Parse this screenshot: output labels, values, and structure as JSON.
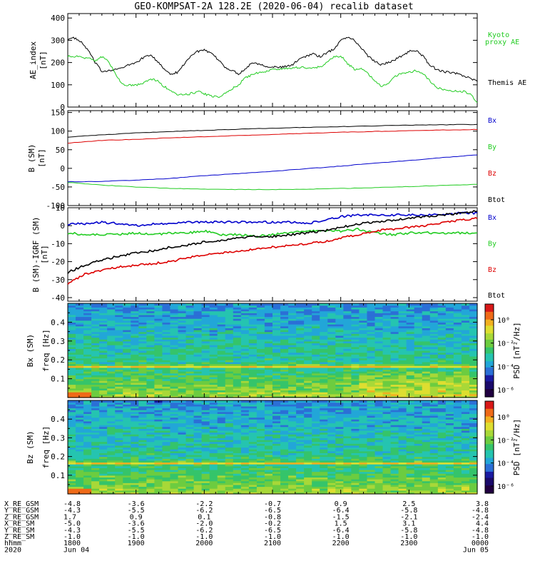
{
  "title": "GEO-KOMPSAT-2A 128.2E (2020-06-04) recalib dataset",
  "colors": {
    "black": "#000000",
    "green": "#22cc22",
    "blue": "#0000cc",
    "red": "#dd0000"
  },
  "chart_data": [
    {
      "type": "line",
      "ylabel": [
        "AE_index",
        "[nT]"
      ],
      "ylim": [
        0,
        420
      ],
      "yticks": [
        "0",
        "100",
        "200",
        "300",
        "400"
      ],
      "legend": [
        {
          "text": "Kyoto",
          "color": "green"
        },
        {
          "text": "proxy AE",
          "color": "green"
        },
        {
          "text": "Themis AE",
          "color": "black"
        }
      ],
      "x_hours": [
        18.0,
        18.1,
        18.2,
        18.3,
        18.4,
        18.5,
        18.6,
        18.7,
        18.8,
        18.9,
        19.0,
        19.1,
        19.2,
        19.3,
        19.4,
        19.5,
        19.6,
        19.7,
        19.8,
        19.9,
        20.0,
        20.1,
        20.2,
        20.3,
        20.4,
        20.5,
        20.6,
        20.7,
        20.8,
        20.9,
        21.0,
        21.1,
        21.2,
        21.3,
        21.4,
        21.5,
        21.6,
        21.7,
        21.8,
        21.9,
        22.0,
        22.1,
        22.2,
        22.3,
        22.4,
        22.5,
        22.6,
        22.7,
        22.8,
        22.9,
        23.0,
        23.1,
        23.2,
        23.3,
        23.4,
        23.5,
        23.6,
        23.7,
        23.8,
        23.9,
        24.0
      ],
      "series": [
        {
          "name": "Themis AE",
          "color": "black",
          "values": [
            305,
            310,
            290,
            255,
            200,
            160,
            165,
            170,
            175,
            190,
            200,
            220,
            235,
            210,
            175,
            150,
            155,
            190,
            230,
            250,
            255,
            240,
            215,
            180,
            165,
            150,
            170,
            200,
            195,
            185,
            180,
            178,
            182,
            190,
            220,
            230,
            240,
            225,
            245,
            260,
            300,
            315,
            300,
            265,
            230,
            205,
            190,
            200,
            215,
            230,
            250,
            255,
            230,
            190,
            170,
            160,
            155,
            150,
            140,
            130,
            115
          ]
        },
        {
          "name": "Kyoto proxy AE",
          "color": "green",
          "values": [
            230,
            228,
            222,
            218,
            210,
            225,
            205,
            150,
            100,
            100,
            100,
            105,
            125,
            120,
            95,
            75,
            55,
            55,
            60,
            70,
            60,
            50,
            45,
            60,
            80,
            100,
            130,
            145,
            155,
            160,
            168,
            170,
            172,
            175,
            178,
            175,
            178,
            180,
            200,
            225,
            230,
            195,
            170,
            175,
            150,
            120,
            90,
            110,
            140,
            150,
            155,
            165,
            150,
            120,
            90,
            80,
            75,
            70,
            70,
            60,
            20
          ]
        }
      ]
    },
    {
      "type": "line",
      "ylabel": [
        "B (SM)",
        "[nT]"
      ],
      "ylim": [
        -100,
        155
      ],
      "yticks": [
        "-100",
        "-50",
        "0",
        "50",
        "100",
        "150"
      ],
      "legend": [
        {
          "text": "Bx",
          "color": "blue"
        },
        {
          "text": "By",
          "color": "green"
        },
        {
          "text": "Bz",
          "color": "red"
        },
        {
          "text": "Btot",
          "color": "black"
        }
      ],
      "x_hours": [
        18.0,
        18.5,
        19.0,
        19.5,
        20.0,
        20.5,
        21.0,
        21.5,
        22.0,
        22.5,
        23.0,
        23.5,
        24.0
      ],
      "series": [
        {
          "name": "Bx",
          "color": "blue",
          "values": [
            -36,
            -35,
            -32,
            -27,
            -20,
            -14,
            -8,
            -1,
            6,
            14,
            21,
            29,
            36
          ]
        },
        {
          "name": "By",
          "color": "green",
          "values": [
            -38,
            -45,
            -50,
            -54,
            -56,
            -57,
            -57,
            -56,
            -54,
            -52,
            -49,
            -46,
            -43
          ]
        },
        {
          "name": "Bz",
          "color": "red",
          "values": [
            68,
            75,
            78,
            82,
            85,
            88,
            91,
            94,
            97,
            99,
            101,
            103,
            104
          ]
        },
        {
          "name": "Btot",
          "color": "black",
          "values": [
            84,
            90,
            95,
            99,
            102,
            105,
            108,
            110,
            112,
            114,
            116,
            117,
            118
          ]
        }
      ]
    },
    {
      "type": "line",
      "ylabel": [
        "B (SM)-IGRF (SM)",
        "[nT]"
      ],
      "ylim": [
        -42,
        10
      ],
      "yticks": [
        "-40",
        "-30",
        "-20",
        "-10",
        "0",
        "10"
      ],
      "legend": [
        {
          "text": "Bx",
          "color": "blue"
        },
        {
          "text": "By",
          "color": "green"
        },
        {
          "text": "Bz",
          "color": "red"
        },
        {
          "text": "Btot",
          "color": "black"
        }
      ],
      "x_hours": [
        18.0,
        18.25,
        18.5,
        18.75,
        19.0,
        19.25,
        19.5,
        19.75,
        20.0,
        20.25,
        20.5,
        20.75,
        21.0,
        21.25,
        21.5,
        21.75,
        22.0,
        22.25,
        22.5,
        22.75,
        23.0,
        23.25,
        23.5,
        23.75,
        24.0
      ],
      "series": [
        {
          "name": "Bx",
          "color": "blue",
          "values": [
            1,
            1,
            2,
            1,
            0,
            1,
            1,
            2,
            2,
            2,
            2,
            2,
            2,
            2,
            1,
            3,
            5,
            6,
            6,
            6,
            6,
            6,
            6,
            7,
            7
          ]
        },
        {
          "name": "By",
          "color": "green",
          "values": [
            -4,
            -5,
            -5,
            -5,
            -4,
            -5,
            -4,
            -4,
            -3,
            -5,
            -5,
            -6,
            -5,
            -4,
            -3,
            -3,
            -3,
            -2,
            -4,
            -5,
            -4,
            -4,
            -4,
            -4,
            -4
          ]
        },
        {
          "name": "Bz",
          "color": "red",
          "values": [
            -32,
            -27,
            -25,
            -23,
            -22,
            -21,
            -20,
            -18,
            -16,
            -15,
            -14,
            -13,
            -12,
            -11,
            -10,
            -9,
            -7,
            -5,
            -3,
            -2,
            -1,
            0,
            2,
            3,
            4
          ]
        },
        {
          "name": "Btot",
          "color": "black",
          "values": [
            -26,
            -22,
            -19,
            -17,
            -15,
            -14,
            -12,
            -11,
            -9,
            -8,
            -7,
            -6,
            -6,
            -5,
            -4,
            -3,
            -1,
            1,
            2,
            3,
            4,
            5,
            6,
            7,
            8
          ]
        }
      ]
    },
    {
      "type": "heatmap",
      "component": "Bx (SM)",
      "ylabel": [
        "Bx (SM)",
        "freq [Hz]"
      ],
      "ylim": [
        0,
        0.5
      ],
      "yticks": [
        "0.1",
        "0.2",
        "0.3",
        "0.4"
      ],
      "colorbar_label": "PSD [nT²/Hz]",
      "colorbar_ticks": [
        "10⁰",
        "10⁻²",
        "10⁻⁴",
        "10⁻⁶"
      ],
      "enhanced_band_hz": 0.167
    },
    {
      "type": "heatmap",
      "component": "Bz (SM)",
      "ylabel": [
        "Bz (SM)",
        "freq [Hz]"
      ],
      "ylim": [
        0,
        0.5
      ],
      "yticks": [
        "0.1",
        "0.2",
        "0.3",
        "0.4"
      ],
      "colorbar_label": "PSD [nT²/Hz]",
      "colorbar_ticks": [
        "10⁰",
        "10⁻²",
        "10⁻⁴",
        "10⁻⁶"
      ],
      "enhanced_band_hz": 0.167
    }
  ],
  "ephemeris": {
    "rows": [
      {
        "label": "X_RE_GSM",
        "values": [
          "-4.8",
          "-3.6",
          "-2.2",
          "-0.7",
          "0.9",
          "2.5",
          "3.8"
        ]
      },
      {
        "label": "Y_RE_GSM",
        "values": [
          "-4.3",
          "-5.5",
          "-6.2",
          "-6.5",
          "-6.4",
          "-5.8",
          "-4.8"
        ]
      },
      {
        "label": "Z_RE_GSM",
        "values": [
          "1.7",
          "0.9",
          "0.1",
          "-0.8",
          "-1.5",
          "-2.1",
          "-2.4"
        ]
      },
      {
        "label": "X_RE_SM",
        "values": [
          "-5.0",
          "-3.6",
          "-2.0",
          "-0.2",
          "1.5",
          "3.1",
          "4.4"
        ]
      },
      {
        "label": "Y_RE_SM",
        "values": [
          "-4.3",
          "-5.5",
          "-6.2",
          "-6.5",
          "-6.4",
          "-5.8",
          "-4.8"
        ]
      },
      {
        "label": "Z_RE_SM",
        "values": [
          "-1.0",
          "-1.0",
          "-1.0",
          "-1.0",
          "-1.0",
          "-1.0",
          "-1.0"
        ]
      },
      {
        "label": "hhmm",
        "values": [
          "1800",
          "1900",
          "2000",
          "2100",
          "2200",
          "2300",
          "0000"
        ]
      }
    ],
    "year_label": "2020",
    "date_start": "Jun 04",
    "date_end": "Jun 05"
  }
}
